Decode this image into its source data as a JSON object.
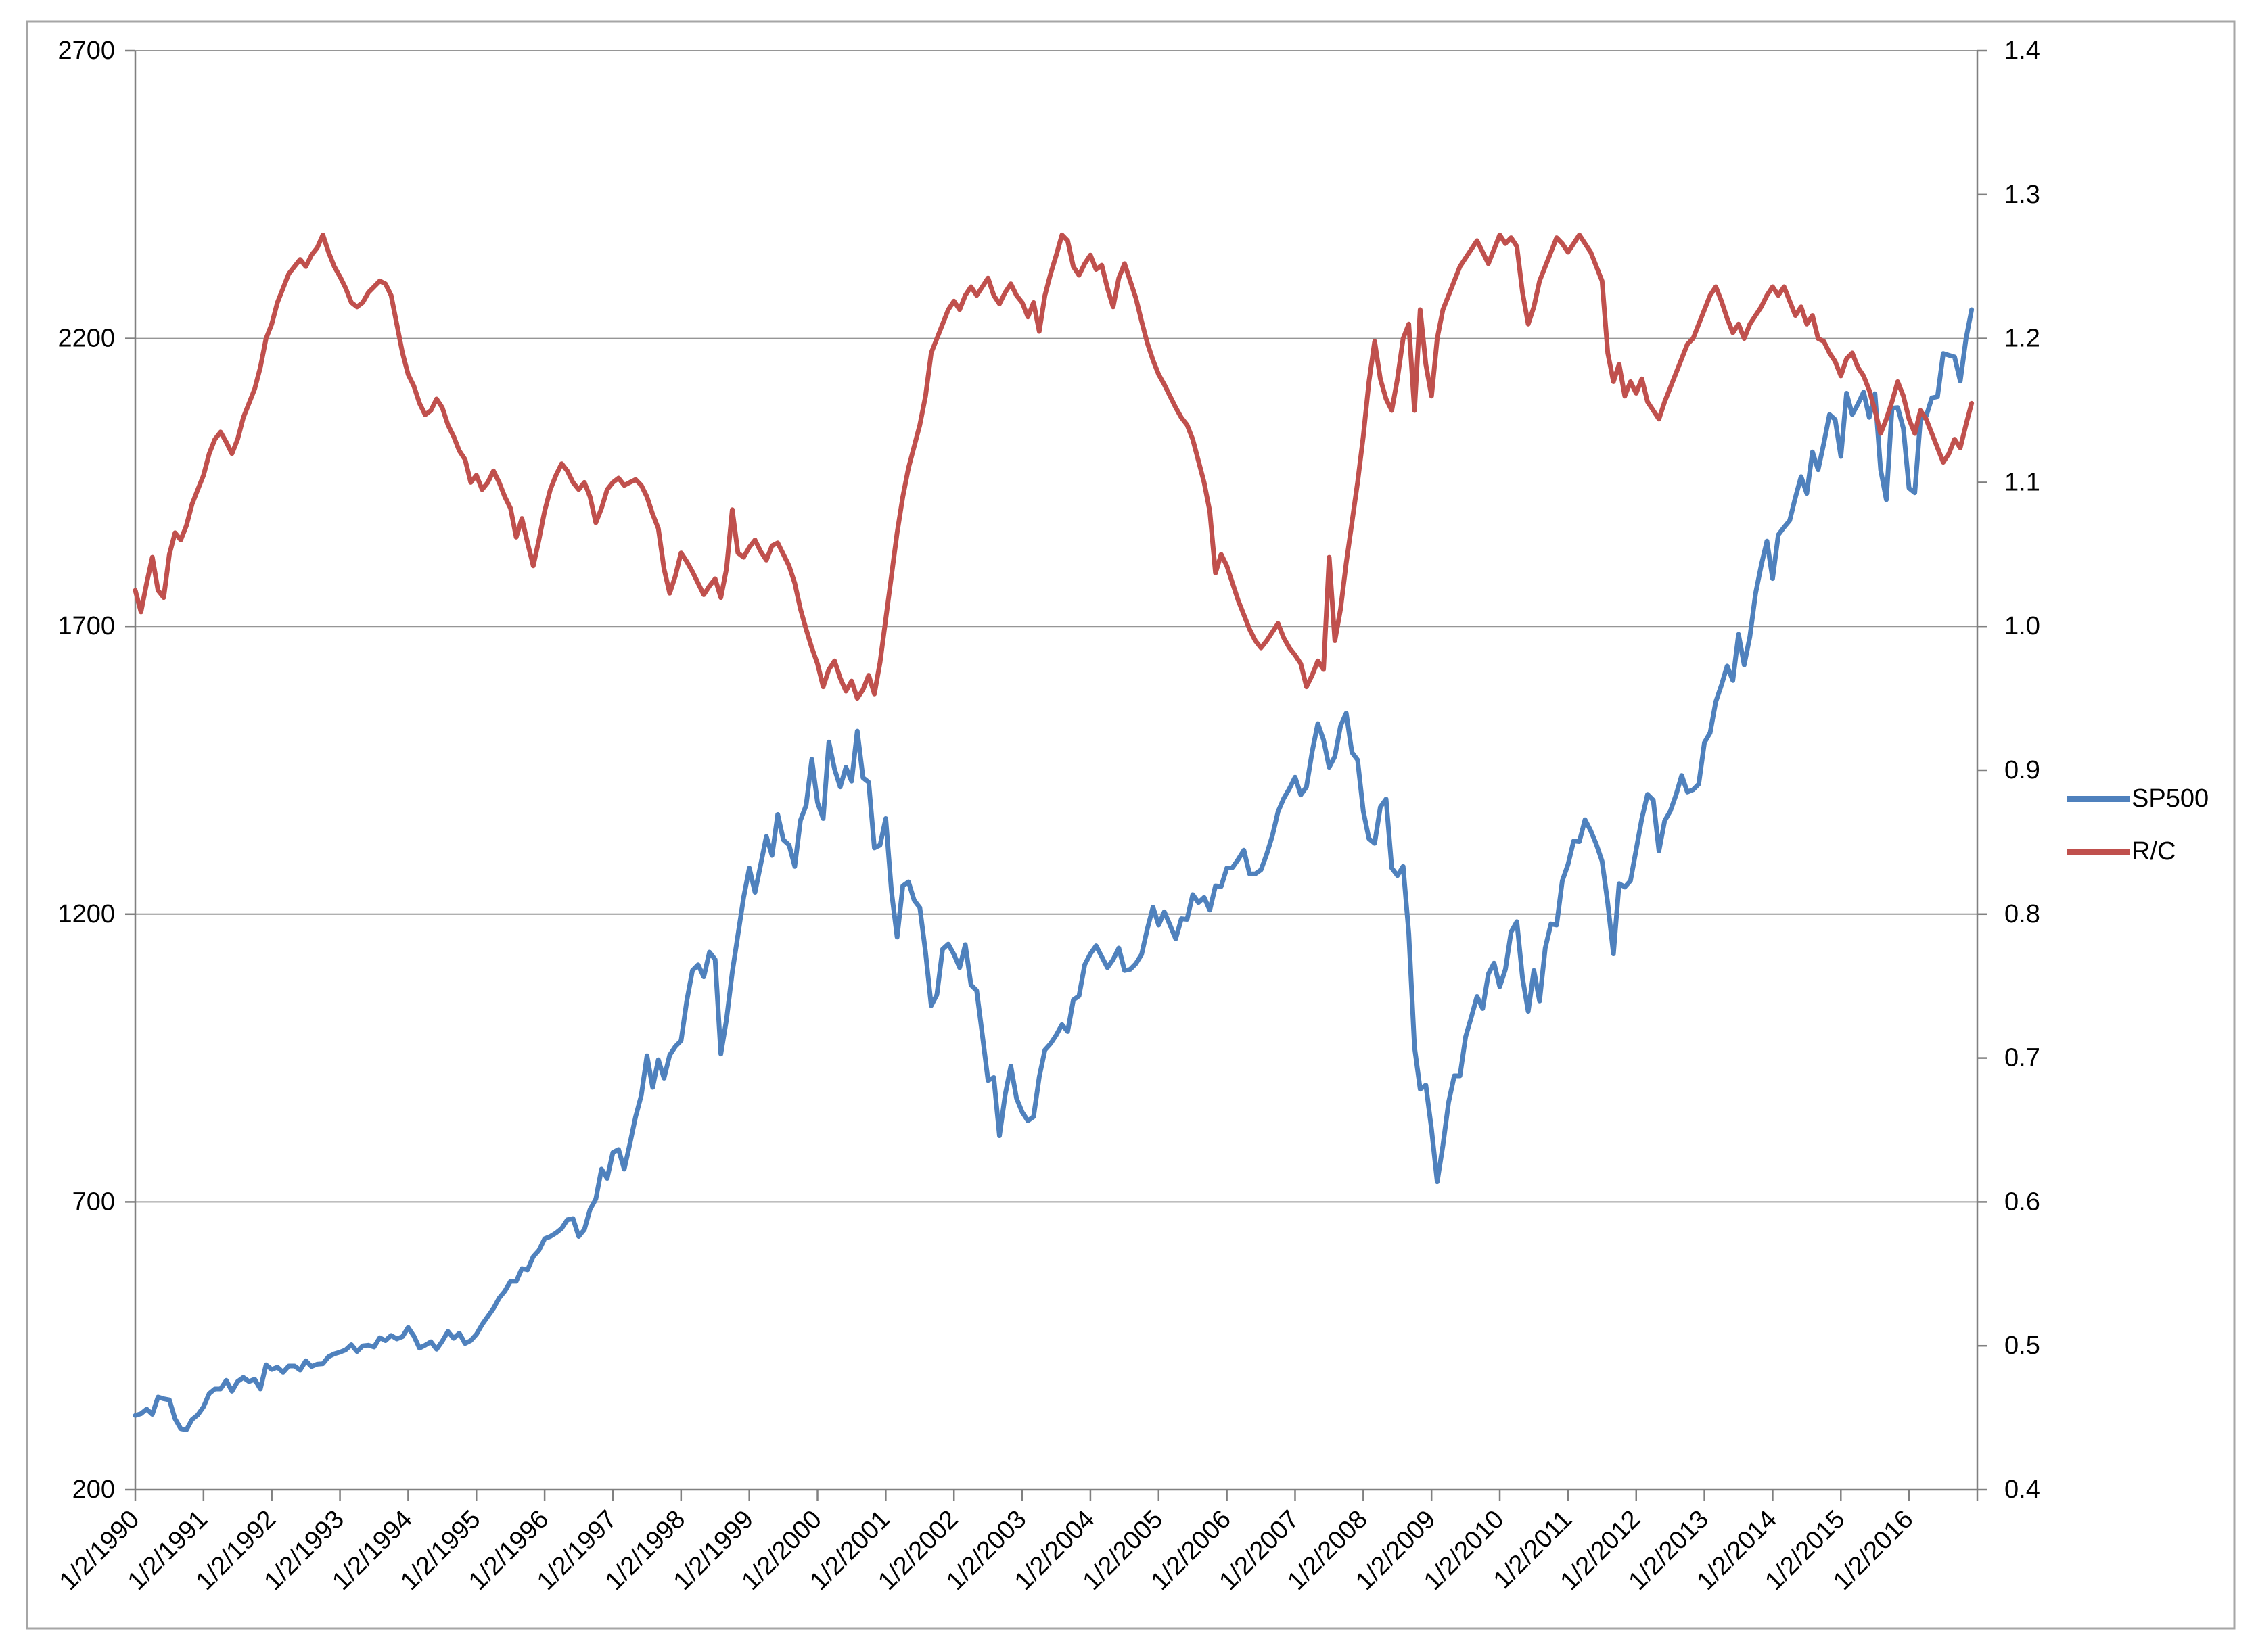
{
  "colors": {
    "background": "#ffffff",
    "chart_border": "#a6a6a6",
    "gridline": "#969696",
    "axis_line": "#808080",
    "sp500_line": "#4F81BD",
    "rc_line": "#C0504D",
    "label_text": "#000000"
  },
  "chart_data": {
    "type": "line",
    "title": "",
    "xlabel": "",
    "ylabel_left": "",
    "ylabel_right": "",
    "grid": {
      "horizontal": true,
      "vertical": false
    },
    "x_unit": "monthly samples of daily series, Jan 1990 - Dec 2016",
    "x_tick_labels": [
      "1/2/1990",
      "1/2/1991",
      "1/2/1992",
      "1/2/1993",
      "1/2/1994",
      "1/2/1995",
      "1/2/1996",
      "1/2/1997",
      "1/2/1998",
      "1/2/1999",
      "1/2/2000",
      "1/2/2001",
      "1/2/2002",
      "1/2/2003",
      "1/2/2004",
      "1/2/2005",
      "1/2/2006",
      "1/2/2007",
      "1/2/2008",
      "1/2/2009",
      "1/2/2010",
      "1/2/2011",
      "1/2/2012",
      "1/2/2013",
      "1/2/2014",
      "1/2/2015",
      "1/2/2016"
    ],
    "left_axis": {
      "min": 200,
      "max": 2700,
      "tick_step": 500,
      "tick_labels": [
        "2700",
        "2200",
        "1700",
        "1200",
        "700",
        "200"
      ]
    },
    "right_axis": {
      "min": 0.4,
      "max": 1.4,
      "tick_step": 0.1,
      "tick_labels": [
        "1.4",
        "1.3",
        "1.2",
        "1.1",
        "1.0",
        "0.9",
        "0.8",
        "0.7",
        "0.6",
        "0.5",
        "0.4"
      ]
    },
    "legend": {
      "position": "right",
      "items": [
        {
          "label": "SP500",
          "color": "#4F81BD"
        },
        {
          "label": "R/C",
          "color": "#C0504D"
        }
      ]
    },
    "series": [
      {
        "name": "SP500",
        "axis": "left",
        "color": "#4F81BD",
        "values": [
          329,
          332,
          340,
          331,
          361,
          358,
          356,
          323,
          306,
          304,
          322,
          330,
          344,
          367,
          375,
          375,
          390,
          371,
          388,
          395,
          388,
          392,
          375,
          417,
          409,
          413,
          404,
          415,
          415,
          408,
          424,
          414,
          418,
          419,
          431,
          436,
          439,
          443,
          452,
          440,
          450,
          451,
          448,
          464,
          459,
          468,
          462,
          466,
          482,
          467,
          446,
          451,
          457,
          444,
          458,
          475,
          463,
          472,
          454,
          459,
          470,
          487,
          501,
          515,
          533,
          545,
          562,
          562,
          584,
          582,
          605,
          616,
          636,
          640,
          646,
          654,
          669,
          671,
          640,
          652,
          687,
          705,
          757,
          741,
          786,
          791,
          757,
          801,
          848,
          885,
          954,
          899,
          947,
          915,
          955,
          970,
          980,
          1049,
          1102,
          1112,
          1091,
          1134,
          1121,
          957,
          1017,
          1099,
          1164,
          1229,
          1280,
          1238,
          1286,
          1335,
          1302,
          1373,
          1329,
          1320,
          1283,
          1363,
          1389,
          1469,
          1394,
          1366,
          1499,
          1452,
          1421,
          1455,
          1431,
          1518,
          1437,
          1429,
          1315,
          1320,
          1366,
          1240,
          1160,
          1249,
          1256,
          1224,
          1211,
          1134,
          1041,
          1060,
          1139,
          1148,
          1130,
          1107,
          1147,
          1077,
          1067,
          990,
          911,
          916,
          815,
          886,
          936,
          880,
          856,
          841,
          848,
          917,
          964,
          975,
          990,
          1008,
          996,
          1051,
          1058,
          1112,
          1131,
          1145,
          1126,
          1107,
          1121,
          1141,
          1102,
          1104,
          1114,
          1130,
          1174,
          1212,
          1181,
          1204,
          1181,
          1157,
          1192,
          1191,
          1234,
          1220,
          1229,
          1207,
          1249,
          1248,
          1280,
          1281,
          1295,
          1311,
          1270,
          1270,
          1277,
          1304,
          1336,
          1378,
          1401,
          1418,
          1438,
          1407,
          1421,
          1482,
          1531,
          1503,
          1455,
          1474,
          1527,
          1549,
          1481,
          1468,
          1379,
          1331,
          1323,
          1386,
          1400,
          1280,
          1267,
          1283,
          1166,
          969,
          896,
          903,
          826,
          735,
          798,
          873,
          919,
          919,
          987,
          1021,
          1057,
          1036,
          1096,
          1115,
          1074,
          1104,
          1169,
          1187,
          1089,
          1031,
          1102,
          1049,
          1141,
          1183,
          1181,
          1258,
          1286,
          1327,
          1326,
          1364,
          1345,
          1321,
          1292,
          1219,
          1131,
          1253,
          1247,
          1258,
          1312,
          1366,
          1408,
          1398,
          1310,
          1362,
          1379,
          1407,
          1441,
          1412,
          1416,
          1426,
          1498,
          1515,
          1569,
          1598,
          1631,
          1606,
          1686,
          1633,
          1682,
          1757,
          1806,
          1848,
          1783,
          1859,
          1872,
          1884,
          1924,
          1960,
          1931,
          2003,
          1972,
          2018,
          2068,
          2059,
          1995,
          2105,
          2068,
          2086,
          2107,
          2063,
          2104,
          1972,
          1920,
          2079,
          2080,
          2044,
          1940,
          1932,
          2060,
          2065,
          2097,
          2099,
          2174,
          2171,
          2168,
          2126,
          2199,
          2250
        ]
      },
      {
        "name": "R/C",
        "axis": "right",
        "color": "#C0504D",
        "values": [
          1.025,
          1.01,
          1.03,
          1.048,
          1.025,
          1.02,
          1.05,
          1.065,
          1.06,
          1.07,
          1.085,
          1.095,
          1.105,
          1.12,
          1.13,
          1.135,
          1.128,
          1.12,
          1.13,
          1.145,
          1.155,
          1.165,
          1.18,
          1.2,
          1.21,
          1.225,
          1.235,
          1.245,
          1.25,
          1.255,
          1.25,
          1.258,
          1.263,
          1.272,
          1.26,
          1.25,
          1.243,
          1.235,
          1.225,
          1.222,
          1.225,
          1.232,
          1.236,
          1.24,
          1.238,
          1.23,
          1.21,
          1.19,
          1.175,
          1.167,
          1.155,
          1.147,
          1.15,
          1.158,
          1.152,
          1.14,
          1.132,
          1.122,
          1.116,
          1.1,
          1.105,
          1.095,
          1.1,
          1.108,
          1.1,
          1.09,
          1.082,
          1.062,
          1.075,
          1.058,
          1.042,
          1.06,
          1.08,
          1.095,
          1.105,
          1.113,
          1.108,
          1.1,
          1.095,
          1.1,
          1.09,
          1.072,
          1.082,
          1.095,
          1.1,
          1.103,
          1.098,
          1.1,
          1.102,
          1.098,
          1.09,
          1.078,
          1.068,
          1.04,
          1.023,
          1.035,
          1.051,
          1.045,
          1.038,
          1.03,
          1.022,
          1.028,
          1.033,
          1.02,
          1.04,
          1.081,
          1.051,
          1.048,
          1.055,
          1.06,
          1.052,
          1.046,
          1.056,
          1.058,
          1.05,
          1.042,
          1.03,
          1.012,
          0.998,
          0.985,
          0.974,
          0.958,
          0.97,
          0.976,
          0.964,
          0.955,
          0.962,
          0.95,
          0.956,
          0.966,
          0.953,
          0.975,
          1.005,
          1.035,
          1.065,
          1.09,
          1.11,
          1.125,
          1.14,
          1.16,
          1.19,
          1.2,
          1.21,
          1.22,
          1.226,
          1.22,
          1.23,
          1.236,
          1.23,
          1.236,
          1.242,
          1.23,
          1.224,
          1.232,
          1.238,
          1.23,
          1.225,
          1.215,
          1.225,
          1.205,
          1.23,
          1.245,
          1.258,
          1.272,
          1.268,
          1.25,
          1.244,
          1.252,
          1.258,
          1.248,
          1.251,
          1.235,
          1.222,
          1.242,
          1.252,
          1.24,
          1.228,
          1.212,
          1.197,
          1.185,
          1.175,
          1.168,
          1.16,
          1.152,
          1.145,
          1.14,
          1.13,
          1.115,
          1.1,
          1.08,
          1.037,
          1.05,
          1.042,
          1.03,
          1.018,
          1.008,
          0.998,
          0.99,
          0.985,
          0.99,
          0.996,
          1.002,
          0.992,
          0.985,
          0.98,
          0.974,
          0.958,
          0.966,
          0.976,
          0.97,
          1.048,
          0.99,
          1.012,
          1.044,
          1.072,
          1.1,
          1.132,
          1.17,
          1.198,
          1.172,
          1.158,
          1.15,
          1.172,
          1.2,
          1.21,
          1.15,
          1.22,
          1.182,
          1.16,
          1.2,
          1.22,
          1.23,
          1.24,
          1.25,
          1.256,
          1.262,
          1.268,
          1.26,
          1.252,
          1.262,
          1.272,
          1.266,
          1.27,
          1.264,
          1.232,
          1.21,
          1.222,
          1.24,
          1.25,
          1.26,
          1.27,
          1.266,
          1.26,
          1.266,
          1.272,
          1.266,
          1.26,
          1.25,
          1.24,
          1.19,
          1.17,
          1.182,
          1.16,
          1.17,
          1.162,
          1.172,
          1.156,
          1.15,
          1.144,
          1.156,
          1.166,
          1.176,
          1.186,
          1.196,
          1.2,
          1.21,
          1.22,
          1.23,
          1.236,
          1.226,
          1.214,
          1.204,
          1.21,
          1.2,
          1.21,
          1.216,
          1.222,
          1.23,
          1.236,
          1.23,
          1.236,
          1.226,
          1.216,
          1.222,
          1.21,
          1.216,
          1.2,
          1.198,
          1.19,
          1.184,
          1.174,
          1.186,
          1.19,
          1.18,
          1.174,
          1.164,
          1.15,
          1.134,
          1.144,
          1.156,
          1.17,
          1.16,
          1.144,
          1.134,
          1.15,
          1.144,
          1.134,
          1.124,
          1.114,
          1.12,
          1.13,
          1.124,
          1.14,
          1.155
        ]
      }
    ]
  }
}
